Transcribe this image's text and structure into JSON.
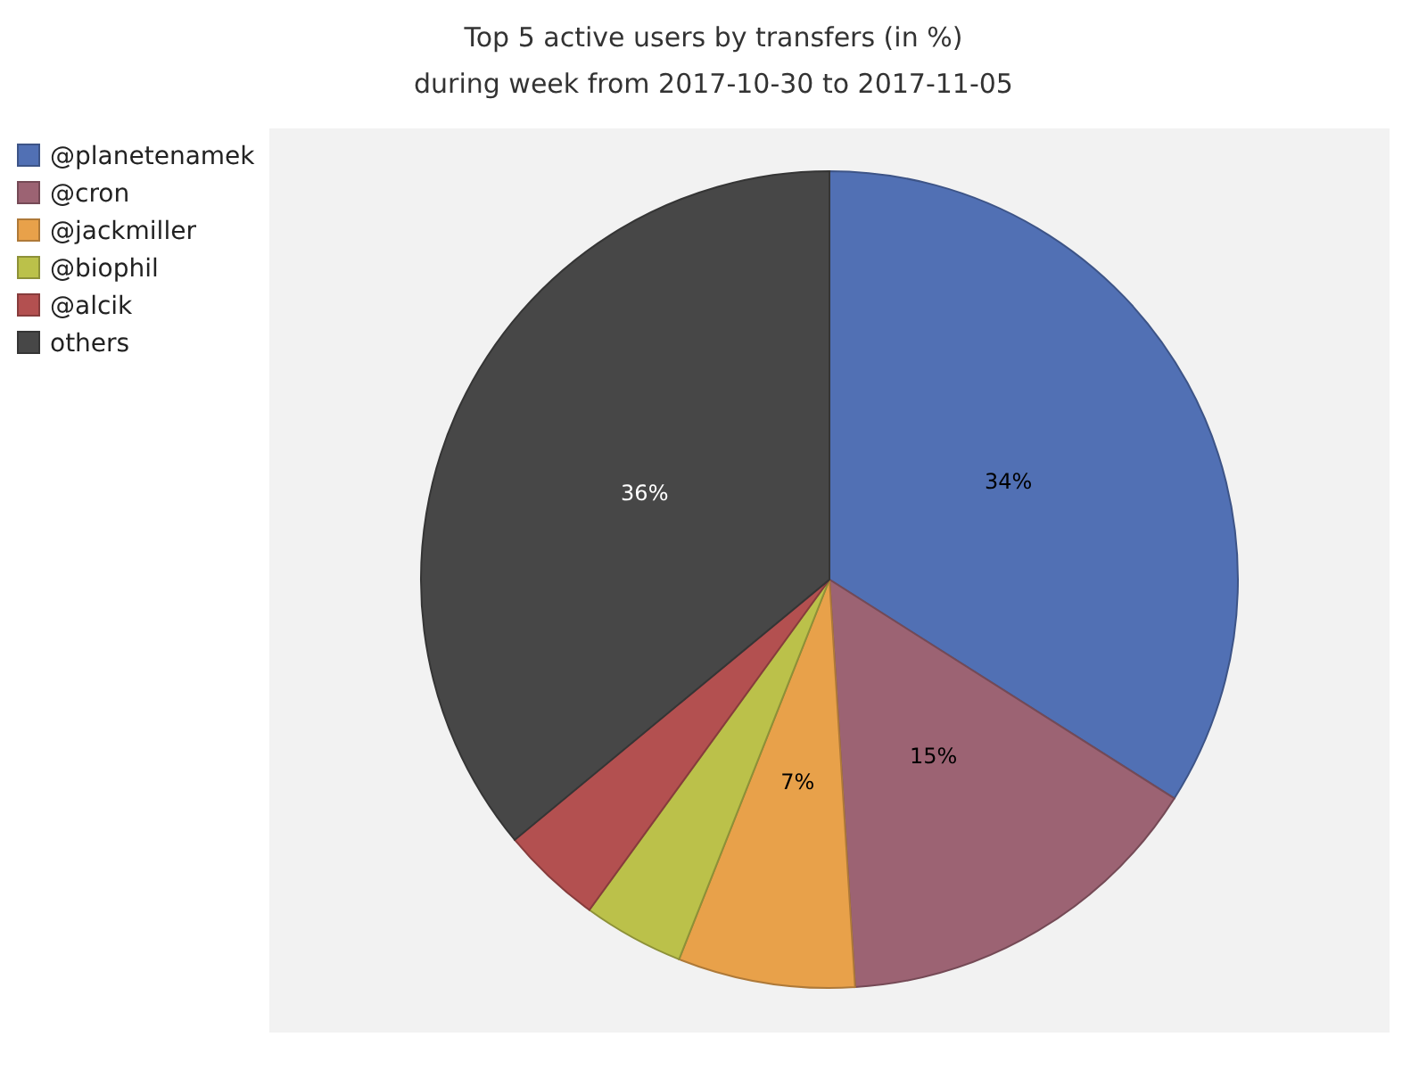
{
  "chart_data": {
    "type": "pie",
    "title": "Top 5 active users by transfers (in %)",
    "subtitle": "during week from 2017-10-30 to 2017-11-05",
    "categories": [
      "@planetenamek",
      "@cron",
      "@jackmiller",
      "@biophil",
      "@alcik",
      "others"
    ],
    "values": [
      34,
      15,
      7,
      4,
      4,
      36
    ],
    "value_labels": [
      "34%",
      "15%",
      "7%",
      null,
      null,
      "36%"
    ],
    "colors": [
      "#5170b4",
      "#9c6373",
      "#e8a14a",
      "#bbc14a",
      "#b35050",
      "#474747"
    ],
    "legend": "top left"
  }
}
